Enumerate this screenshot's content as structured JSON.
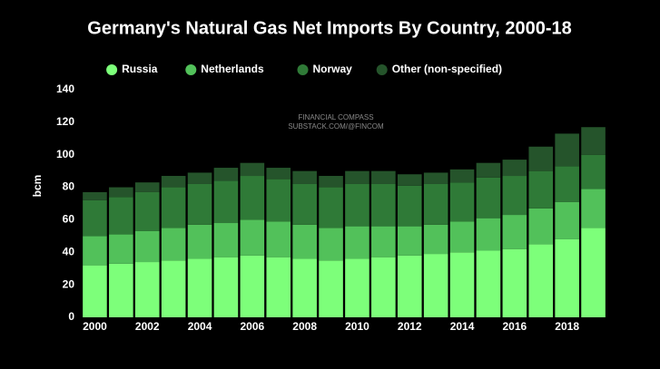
{
  "chart_data": {
    "type": "stacked_bar",
    "title": "Germany's Natural Gas Net Imports By Country, 2000-18",
    "watermark": [
      "FINANCIAL COMPASS",
      "SUBSTACK.COM/@FINCOM"
    ],
    "y_label": "bcm",
    "categories": [
      "2000",
      null,
      "2002",
      null,
      "2004",
      null,
      "2006",
      null,
      "2008",
      null,
      "2010",
      null,
      "2012",
      null,
      "2014",
      null,
      "2016",
      null,
      "2018",
      null
    ],
    "series": [
      {
        "name": "Russia",
        "color": "#7dff7a",
        "values": [
          32,
          33,
          34,
          35,
          36,
          37,
          38,
          37,
          36,
          35,
          36,
          37,
          38,
          39,
          40,
          41,
          42,
          45,
          48,
          55
        ]
      },
      {
        "name": "Netherlands",
        "color": "#52c15a",
        "values": [
          18,
          18,
          19,
          20,
          21,
          21,
          22,
          22,
          21,
          20,
          20,
          19,
          18,
          18,
          19,
          20,
          21,
          22,
          23,
          24
        ]
      },
      {
        "name": "Norway",
        "color": "#2f7a37",
        "values": [
          22,
          23,
          24,
          25,
          25,
          26,
          27,
          26,
          25,
          25,
          26,
          26,
          25,
          25,
          24,
          25,
          24,
          23,
          22,
          21
        ]
      },
      {
        "name": "Other (non-specified)",
        "color": "#25542b",
        "values": [
          5,
          6,
          6,
          7,
          7,
          8,
          8,
          7,
          8,
          7,
          8,
          8,
          7,
          7,
          8,
          9,
          10,
          15,
          20,
          17
        ]
      }
    ],
    "ylim": [
      0,
      140
    ],
    "yticks": [
      0,
      20,
      40,
      60,
      80,
      100,
      120,
      140
    ],
    "grid": false,
    "legend": "top"
  }
}
